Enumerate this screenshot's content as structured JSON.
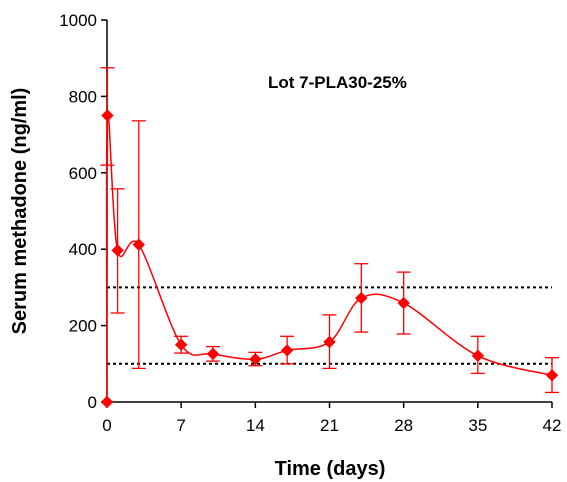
{
  "chart_data": {
    "type": "line",
    "xlabel": "Time (days)",
    "ylabel": "Serum methadone (ng/ml)",
    "xlim": [
      0,
      42
    ],
    "ylim": [
      0,
      1000
    ],
    "xticks": [
      0,
      7,
      14,
      21,
      28,
      35,
      42
    ],
    "yticks": [
      0,
      200,
      400,
      600,
      800,
      1000
    ],
    "annotation": "Lot 7-PLA30-25%",
    "grid": false,
    "series": [
      {
        "color": "#ff0000",
        "marker": "diamond",
        "points": [
          {
            "x": 0,
            "y": 0
          },
          {
            "x": 0.04,
            "y": 750,
            "err_low": 620,
            "err_high": 875
          },
          {
            "x": 1,
            "y": 397,
            "err_low": 233,
            "err_high": 558
          },
          {
            "x": 3,
            "y": 412,
            "err_low": 88,
            "err_high": 736
          },
          {
            "x": 7,
            "y": 150,
            "err_low": 128,
            "err_high": 172
          },
          {
            "x": 10,
            "y": 126,
            "err_low": 107,
            "err_high": 145
          },
          {
            "x": 14,
            "y": 112,
            "err_low": 95,
            "err_high": 130
          },
          {
            "x": 17,
            "y": 135,
            "err_low": 100,
            "err_high": 172
          },
          {
            "x": 21,
            "y": 157,
            "err_low": 88,
            "err_high": 228
          },
          {
            "x": 24,
            "y": 272,
            "err_low": 183,
            "err_high": 362
          },
          {
            "x": 28,
            "y": 259,
            "err_low": 178,
            "err_high": 340
          },
          {
            "x": 35,
            "y": 121,
            "err_low": 75,
            "err_high": 172
          },
          {
            "x": 42,
            "y": 70,
            "err_low": 25,
            "err_high": 116
          }
        ]
      }
    ],
    "reference_lines": [
      {
        "y": 300,
        "style": "dotted",
        "color": "#000000"
      },
      {
        "y": 100,
        "style": "dotted",
        "color": "#000000"
      }
    ]
  }
}
